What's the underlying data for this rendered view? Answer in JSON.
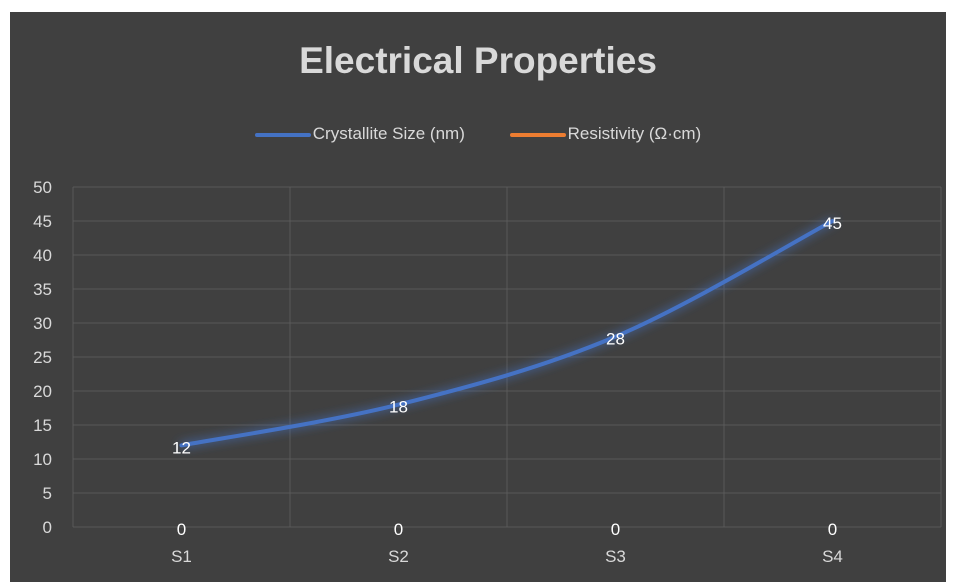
{
  "chart_data": {
    "type": "line",
    "title": "Electrical Properties",
    "categories": [
      "S1",
      "S2",
      "S3",
      "S4"
    ],
    "series": [
      {
        "name": "Crystallite Size (nm)",
        "values": [
          12,
          18,
          28,
          45
        ],
        "color": "#4472c4"
      },
      {
        "name": "Resistivity (Ω·cm)",
        "values": [
          0,
          0,
          0,
          0
        ],
        "color": "#ed7d31"
      }
    ],
    "ylim": [
      0,
      50
    ],
    "yticks": [
      "0",
      "5",
      "10",
      "15",
      "20",
      "25",
      "30",
      "35",
      "40",
      "45",
      "50"
    ],
    "xlabel": "",
    "ylabel": "",
    "grid": true,
    "legend_position": "top",
    "data_labels": true,
    "smooth": true
  },
  "colors": {
    "background": "#404040",
    "grid": "#595959",
    "text": "#d9d9d9"
  }
}
